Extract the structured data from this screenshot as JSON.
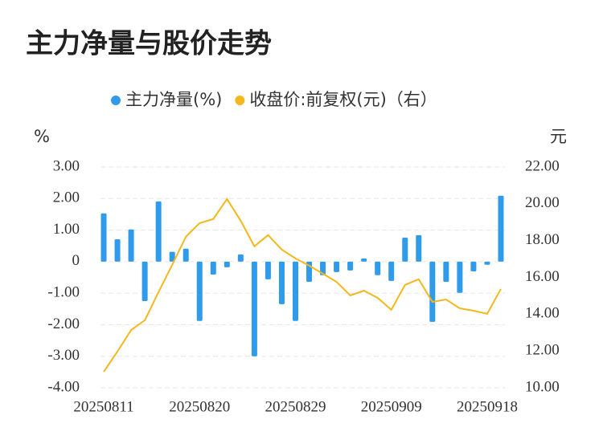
{
  "chart_data": {
    "type": "bar_line",
    "title": "主力净量与股价走势",
    "y_unit": "%",
    "y2_unit": "元",
    "categories": [
      "20250811",
      null,
      null,
      null,
      null,
      null,
      null,
      "20250820",
      null,
      null,
      null,
      null,
      null,
      null,
      "20250829",
      null,
      null,
      null,
      null,
      null,
      null,
      "20250909",
      null,
      null,
      null,
      null,
      null,
      null,
      "20250918",
      null
    ],
    "series": [
      {
        "name": "主力净量(%)",
        "type": "bar",
        "color": "#2f9bea",
        "values": [
          1.53,
          0.71,
          1.02,
          -1.25,
          1.91,
          0.31,
          0.41,
          -1.88,
          -0.41,
          -0.18,
          0.23,
          -3.0,
          -0.56,
          -1.35,
          -1.88,
          -0.64,
          -0.43,
          -0.33,
          -0.28,
          0.1,
          -0.43,
          -0.61,
          0.76,
          0.84,
          -1.91,
          -0.64,
          -0.99,
          -0.31,
          -0.1,
          2.09
        ]
      },
      {
        "name": "收盘价:前复权(元)（右）",
        "type": "line",
        "axis": "y2",
        "color": "#f4b81c",
        "values": [
          10.87,
          11.97,
          13.14,
          13.67,
          15.2,
          16.68,
          18.21,
          18.95,
          19.17,
          20.26,
          19.08,
          17.69,
          18.3,
          17.51,
          17.03,
          16.64,
          16.2,
          15.76,
          15.02,
          15.28,
          14.89,
          14.24,
          15.59,
          15.9,
          14.67,
          14.8,
          14.32,
          14.19,
          14.02,
          15.37
        ]
      }
    ],
    "ylim": [
      -4,
      3
    ],
    "yticks": [
      {
        "value": -4,
        "label": "-4.00"
      },
      {
        "value": -3,
        "label": "-3.00"
      },
      {
        "value": -2,
        "label": "-2.00"
      },
      {
        "value": -1,
        "label": "-1.00"
      },
      0,
      {
        "value": 1,
        "label": "1.00"
      },
      {
        "value": 2,
        "label": "2.00"
      },
      {
        "value": 3,
        "label": "3.00"
      }
    ],
    "y2lim": [
      10,
      22
    ],
    "y2ticks": [
      {
        "value": 10,
        "label": "10.00"
      },
      {
        "value": 12,
        "label": "12.00"
      },
      {
        "value": 14,
        "label": "14.00"
      },
      {
        "value": 16,
        "label": "16.00"
      },
      {
        "value": 18,
        "label": "18.00"
      },
      {
        "value": 20,
        "label": "20.00"
      },
      {
        "value": 22,
        "label": "22.00"
      }
    ],
    "grid": true,
    "legend": "top"
  }
}
